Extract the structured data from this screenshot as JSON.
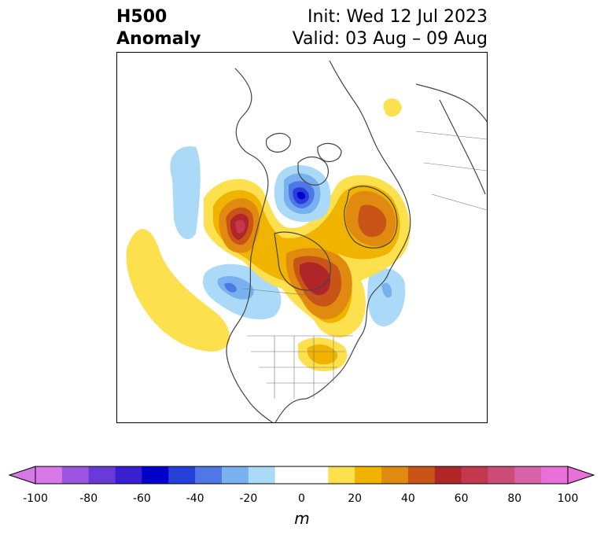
{
  "title": {
    "left_line1": "H500",
    "left_line2": "Anomaly",
    "right_line1": "Init: Wed 12 Jul 2023",
    "right_line2": "Valid: 03 Aug – 09 Aug"
  },
  "colorbar": {
    "unit": "m",
    "ticks": [
      "-100",
      "-80",
      "-60",
      "-40",
      "-20",
      "0",
      "20",
      "40",
      "60",
      "80",
      "100"
    ],
    "tick_values": [
      -100,
      -80,
      -60,
      -40,
      -20,
      0,
      20,
      40,
      60,
      80,
      100
    ],
    "bins": [
      -100,
      -90,
      -80,
      -70,
      -60,
      -50,
      -40,
      -30,
      -20,
      -10,
      10,
      20,
      30,
      40,
      50,
      60,
      70,
      80,
      90,
      100
    ],
    "colors": [
      "#d678e6",
      "#9b55e0",
      "#6a3ad8",
      "#3a1fd0",
      "#0000cc",
      "#2540d8",
      "#4f78e6",
      "#78b0f0",
      "#aadaf8",
      "#ffffff",
      "#fde04e",
      "#f0b400",
      "#e08a10",
      "#c85418",
      "#b02628",
      "#c4384e",
      "#cc4c78",
      "#d862a8",
      "#e870d8"
    ],
    "extend_low_color": "#d678e6",
    "extend_high_color": "#e870d8"
  },
  "map": {
    "projection": "north-polar stereographic",
    "region": "North America / Arctic",
    "anomaly_features": [
      {
        "sign": "positive",
        "location": "Alaska / Yukon",
        "peak_m": 60
      },
      {
        "sign": "negative",
        "location": "Canadian Arctic Archipelago",
        "peak_m": -60
      },
      {
        "sign": "positive",
        "location": "Greenland",
        "peak_m": 40
      },
      {
        "sign": "positive",
        "location": "Hudson Bay / Central Canada",
        "peak_m": 60
      },
      {
        "sign": "negative",
        "location": "Gulf of Alaska",
        "peak_m": -30
      },
      {
        "sign": "negative",
        "location": "Central North Atlantic",
        "peak_m": -30
      },
      {
        "sign": "positive",
        "location": "Eastern Pacific",
        "peak_m": 10
      },
      {
        "sign": "positive",
        "location": "Southeastern United States",
        "peak_m": 20
      },
      {
        "sign": "negative",
        "location": "Bering Sea",
        "peak_m": -10
      },
      {
        "sign": "positive",
        "location": "Siberia",
        "peak_m": 10
      }
    ]
  }
}
